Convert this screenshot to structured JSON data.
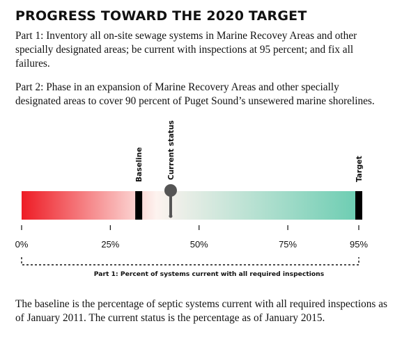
{
  "title": "PROGRESS TOWARD THE 2020 TARGET",
  "paragraphs": {
    "part1": "Part 1: Inventory all on-site sewage systems in Marine Recovey Areas and other specially designated areas; be current with inspections at 95 percent; and fix all failures.",
    "part2": "Part 2: Phase in an expansion of Marine Recovery Areas and other specially designated areas to cover 90 percent of Puget Sound’s unsewered marine shorelines.",
    "footnote": "The baseline is the percentage of septic systems current with all required inspections as of January 2011. The current status is the percentage as of January 2015."
  },
  "chart_data": {
    "type": "bar",
    "title": "",
    "xlabel": "Part 1: Percent of systems current with all required inspections",
    "ticks": [
      {
        "value": 0,
        "label": "0%"
      },
      {
        "value": 25,
        "label": "25%"
      },
      {
        "value": 50,
        "label": "50%"
      },
      {
        "value": 75,
        "label": "75%"
      },
      {
        "value": 95,
        "label": "95%"
      }
    ],
    "xlim": [
      0,
      95
    ],
    "markers": [
      {
        "name": "Baseline",
        "value": 33
      },
      {
        "name": "Current status",
        "value": 42
      },
      {
        "name": "Target",
        "value": 95
      }
    ],
    "colors": {
      "low": "#ee1c25",
      "mid": "#fdf3ef",
      "high": "#6ccdb2",
      "marker": "#000000",
      "pin": "#555555"
    }
  }
}
